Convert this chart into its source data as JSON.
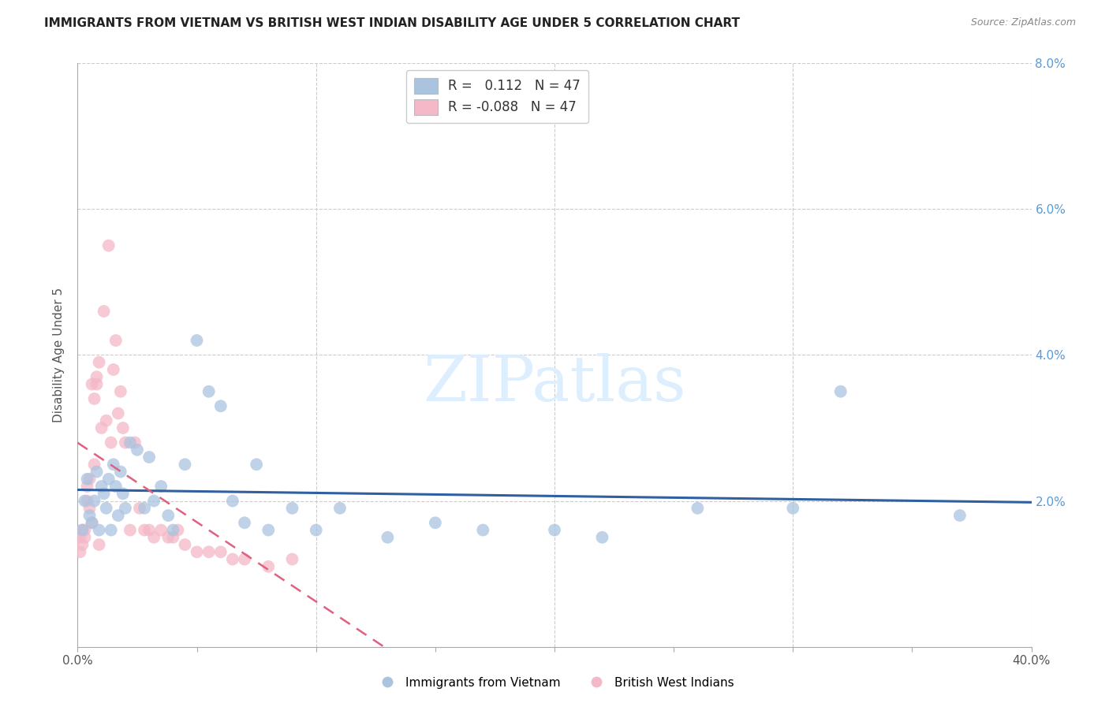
{
  "title": "IMMIGRANTS FROM VIETNAM VS BRITISH WEST INDIAN DISABILITY AGE UNDER 5 CORRELATION CHART",
  "source": "Source: ZipAtlas.com",
  "ylabel": "Disability Age Under 5",
  "xlim": [
    0.0,
    0.4
  ],
  "ylim": [
    0.0,
    0.08
  ],
  "legend_blue_label": "Immigrants from Vietnam",
  "legend_pink_label": "British West Indians",
  "r_blue": 0.112,
  "n_blue": 47,
  "r_pink": -0.088,
  "n_pink": 47,
  "blue_color": "#aac4e0",
  "pink_color": "#f4b8c8",
  "blue_line_color": "#3060a0",
  "pink_line_color": "#e06080",
  "watermark": "ZIPatlas",
  "blue_x": [
    0.002,
    0.003,
    0.004,
    0.005,
    0.006,
    0.007,
    0.008,
    0.009,
    0.01,
    0.011,
    0.012,
    0.013,
    0.014,
    0.015,
    0.016,
    0.017,
    0.018,
    0.019,
    0.02,
    0.022,
    0.025,
    0.028,
    0.03,
    0.032,
    0.035,
    0.038,
    0.04,
    0.045,
    0.05,
    0.055,
    0.06,
    0.065,
    0.07,
    0.075,
    0.08,
    0.09,
    0.1,
    0.11,
    0.13,
    0.15,
    0.17,
    0.2,
    0.22,
    0.26,
    0.3,
    0.32,
    0.37
  ],
  "blue_y": [
    0.016,
    0.02,
    0.023,
    0.018,
    0.017,
    0.02,
    0.024,
    0.016,
    0.022,
    0.021,
    0.019,
    0.023,
    0.016,
    0.025,
    0.022,
    0.018,
    0.024,
    0.021,
    0.019,
    0.028,
    0.027,
    0.019,
    0.026,
    0.02,
    0.022,
    0.018,
    0.016,
    0.025,
    0.042,
    0.035,
    0.033,
    0.02,
    0.017,
    0.025,
    0.016,
    0.019,
    0.016,
    0.019,
    0.015,
    0.017,
    0.016,
    0.016,
    0.015,
    0.019,
    0.019,
    0.035,
    0.018
  ],
  "pink_x": [
    0.001,
    0.001,
    0.002,
    0.002,
    0.003,
    0.003,
    0.004,
    0.004,
    0.005,
    0.005,
    0.006,
    0.006,
    0.007,
    0.007,
    0.008,
    0.008,
    0.009,
    0.009,
    0.01,
    0.011,
    0.012,
    0.013,
    0.014,
    0.015,
    0.016,
    0.017,
    0.018,
    0.019,
    0.02,
    0.022,
    0.024,
    0.026,
    0.028,
    0.03,
    0.032,
    0.035,
    0.038,
    0.04,
    0.042,
    0.045,
    0.05,
    0.055,
    0.06,
    0.065,
    0.07,
    0.08,
    0.09
  ],
  "pink_y": [
    0.013,
    0.015,
    0.014,
    0.016,
    0.015,
    0.016,
    0.02,
    0.022,
    0.019,
    0.023,
    0.017,
    0.036,
    0.025,
    0.034,
    0.036,
    0.037,
    0.014,
    0.039,
    0.03,
    0.046,
    0.031,
    0.055,
    0.028,
    0.038,
    0.042,
    0.032,
    0.035,
    0.03,
    0.028,
    0.016,
    0.028,
    0.019,
    0.016,
    0.016,
    0.015,
    0.016,
    0.015,
    0.015,
    0.016,
    0.014,
    0.013,
    0.013,
    0.013,
    0.012,
    0.012,
    0.011,
    0.012
  ]
}
